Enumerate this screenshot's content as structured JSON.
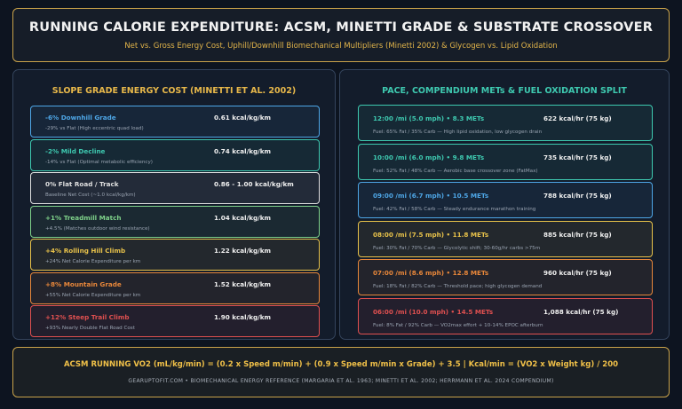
{
  "header": {
    "title": "RUNNING CALORIE EXPENDITURE: ACSM, MINETTI GRADE & SUBSTRATE CROSSOVER",
    "subtitle": "Net vs. Gross Energy Cost, Uphill/Downhill Biomechanical Multipliers (Minetti 2002) & Glycogen vs. Lipid Oxidation"
  },
  "grade_panel": {
    "title": "SLOPE GRADE ENERGY COST (MINETTI ET AL. 2002)",
    "items": [
      {
        "name": "-6% Downhill Grade",
        "value": "0.61 kcal/kg/km",
        "desc": "-29% vs Flat (High eccentric quad load)",
        "color": "#4ea6e6"
      },
      {
        "name": "-2% Mild Decline",
        "value": "0.74 kcal/kg/km",
        "desc": "-14% vs Flat (Optimal metabolic efficiency)",
        "color": "#3ec9b0"
      },
      {
        "name": "0% Flat Road / Track",
        "value": "0.86 - 1.00 kcal/kg/km",
        "desc": "Baseline Net Cost (~1.0 kcal/kg/km)",
        "color": "#e0e0e0"
      },
      {
        "name": "+1% Treadmill Match",
        "value": "1.04 kcal/kg/km",
        "desc": "+4.5% (Matches outdoor wind resistance)",
        "color": "#7fd28a"
      },
      {
        "name": "+4% Rolling Hill Climb",
        "value": "1.22 kcal/kg/km",
        "desc": "+24% Net Calorie Expenditure per km",
        "color": "#e8c24a"
      },
      {
        "name": "+8% Mountain Grade",
        "value": "1.52 kcal/kg/km",
        "desc": "+55% Net Calorie Expenditure per km",
        "color": "#e8873a"
      },
      {
        "name": "+12% Steep Trail Climb",
        "value": "1.90 kcal/kg/km",
        "desc": "+93% Nearly Double Flat Road Cost",
        "color": "#e05050"
      }
    ]
  },
  "pace_panel": {
    "title": "PACE, COMPENDIUM METs & FUEL OXIDATION SPLIT",
    "items": [
      {
        "name": "12:00 /mi (5.0 mph)  •  8.3 METs",
        "value": "622 kcal/hr (75 kg)",
        "desc": "Fuel: 65% Fat / 35% Carb — High lipid oxidation, low glycogen drain",
        "color": "#3ec9b0"
      },
      {
        "name": "10:00 /mi (6.0 mph)  •  9.8 METs",
        "value": "735 kcal/hr (75 kg)",
        "desc": "Fuel: 52% Fat / 48% Carb — Aerobic base crossover zone (FatMax)",
        "color": "#3ec9b0"
      },
      {
        "name": "09:00 /mi (6.7 mph)  •  10.5 METs",
        "value": "788 kcal/hr (75 kg)",
        "desc": "Fuel: 42% Fat / 58% Carb — Steady endurance marathon training",
        "color": "#4ea6e6"
      },
      {
        "name": "08:00 /mi (7.5 mph)  •  11.8 METs",
        "value": "885 kcal/hr (75 kg)",
        "desc": "Fuel: 30% Fat / 70% Carb — Glycolytic shift; 30-60g/hr carbs >75m",
        "color": "#e8c24a"
      },
      {
        "name": "07:00 /mi (8.6 mph)  •  12.8 METs",
        "value": "960 kcal/hr (75 kg)",
        "desc": "Fuel: 18% Fat / 82% Carb — Threshold pace; high glycogen demand",
        "color": "#e8873a"
      },
      {
        "name": "06:00 /mi (10.0 mph)  •  14.5 METs",
        "value": "1,088 kcal/hr (75 kg)",
        "desc": "Fuel: 8% Fat / 92% Carb — VO2max effort + 10-14% EPOC afterburn",
        "color": "#e05050"
      }
    ]
  },
  "footer": {
    "formula": "ACSM RUNNING VO2 (mL/kg/min) = (0.2 x Speed m/min) + (0.9 x Speed m/min x Grade) + 3.5   |   Kcal/min = (VO2 x Weight kg) / 200",
    "credits": "GEARUPTOFIT.COM  •  BIOMECHANICAL ENERGY REFERENCE (MARGARIA ET AL. 1963; MINETTI ET AL. 2002; HERRMANN ET AL. 2024 COMPENDIUM)"
  }
}
